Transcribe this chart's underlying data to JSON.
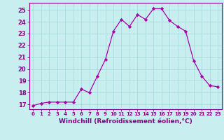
{
  "x": [
    0,
    1,
    2,
    3,
    4,
    5,
    6,
    7,
    8,
    9,
    10,
    11,
    12,
    13,
    14,
    15,
    16,
    17,
    18,
    19,
    20,
    21,
    22,
    23
  ],
  "y": [
    16.9,
    17.1,
    17.2,
    17.2,
    17.2,
    17.2,
    18.3,
    18.0,
    19.4,
    20.8,
    23.2,
    24.2,
    23.6,
    24.6,
    24.2,
    25.1,
    25.1,
    24.1,
    23.6,
    23.2,
    20.7,
    19.4,
    18.6,
    18.5
  ],
  "line_color": "#aa00aa",
  "marker": "D",
  "marker_size": 2.2,
  "bg_color": "#c8eef0",
  "grid_color": "#aadddd",
  "xlabel": "Windchill (Refroidissement éolien,°C)",
  "ylim": [
    16.6,
    25.6
  ],
  "xlim": [
    -0.5,
    23.5
  ],
  "yticks": [
    17,
    18,
    19,
    20,
    21,
    22,
    23,
    24,
    25
  ],
  "xticks": [
    0,
    1,
    2,
    3,
    4,
    5,
    6,
    7,
    8,
    9,
    10,
    11,
    12,
    13,
    14,
    15,
    16,
    17,
    18,
    19,
    20,
    21,
    22,
    23
  ],
  "ytick_fontsize": 6.0,
  "xtick_fontsize": 5.0,
  "xlabel_fontsize": 6.5,
  "label_color": "#880088",
  "spine_color": "#880088",
  "linewidth": 0.9
}
